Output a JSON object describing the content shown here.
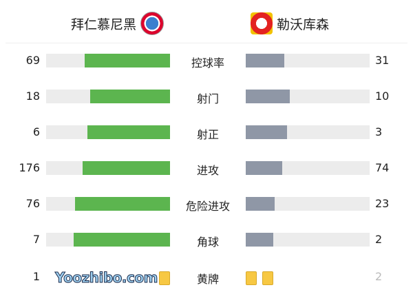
{
  "home": {
    "name": "拜仁慕尼黑",
    "logo": "fc-bayern-munchen-crest",
    "color": "#5cb54f"
  },
  "away": {
    "name": "勒沃库森",
    "logo": "bayer-leverkusen-crest",
    "color": "#8f97a6"
  },
  "stats": [
    {
      "label": "控球率",
      "home": 69,
      "away": 31
    },
    {
      "label": "射门",
      "home": 18,
      "away": 10
    },
    {
      "label": "射正",
      "home": 6,
      "away": 3
    },
    {
      "label": "进攻",
      "home": 176,
      "away": 74
    },
    {
      "label": "危险进攻",
      "home": 76,
      "away": 23
    },
    {
      "label": "角球",
      "home": 7,
      "away": 2
    }
  ],
  "yellow_cards": {
    "label": "黄牌",
    "home": 1,
    "away": 2
  },
  "watermark": "Yoozhibo.com"
}
